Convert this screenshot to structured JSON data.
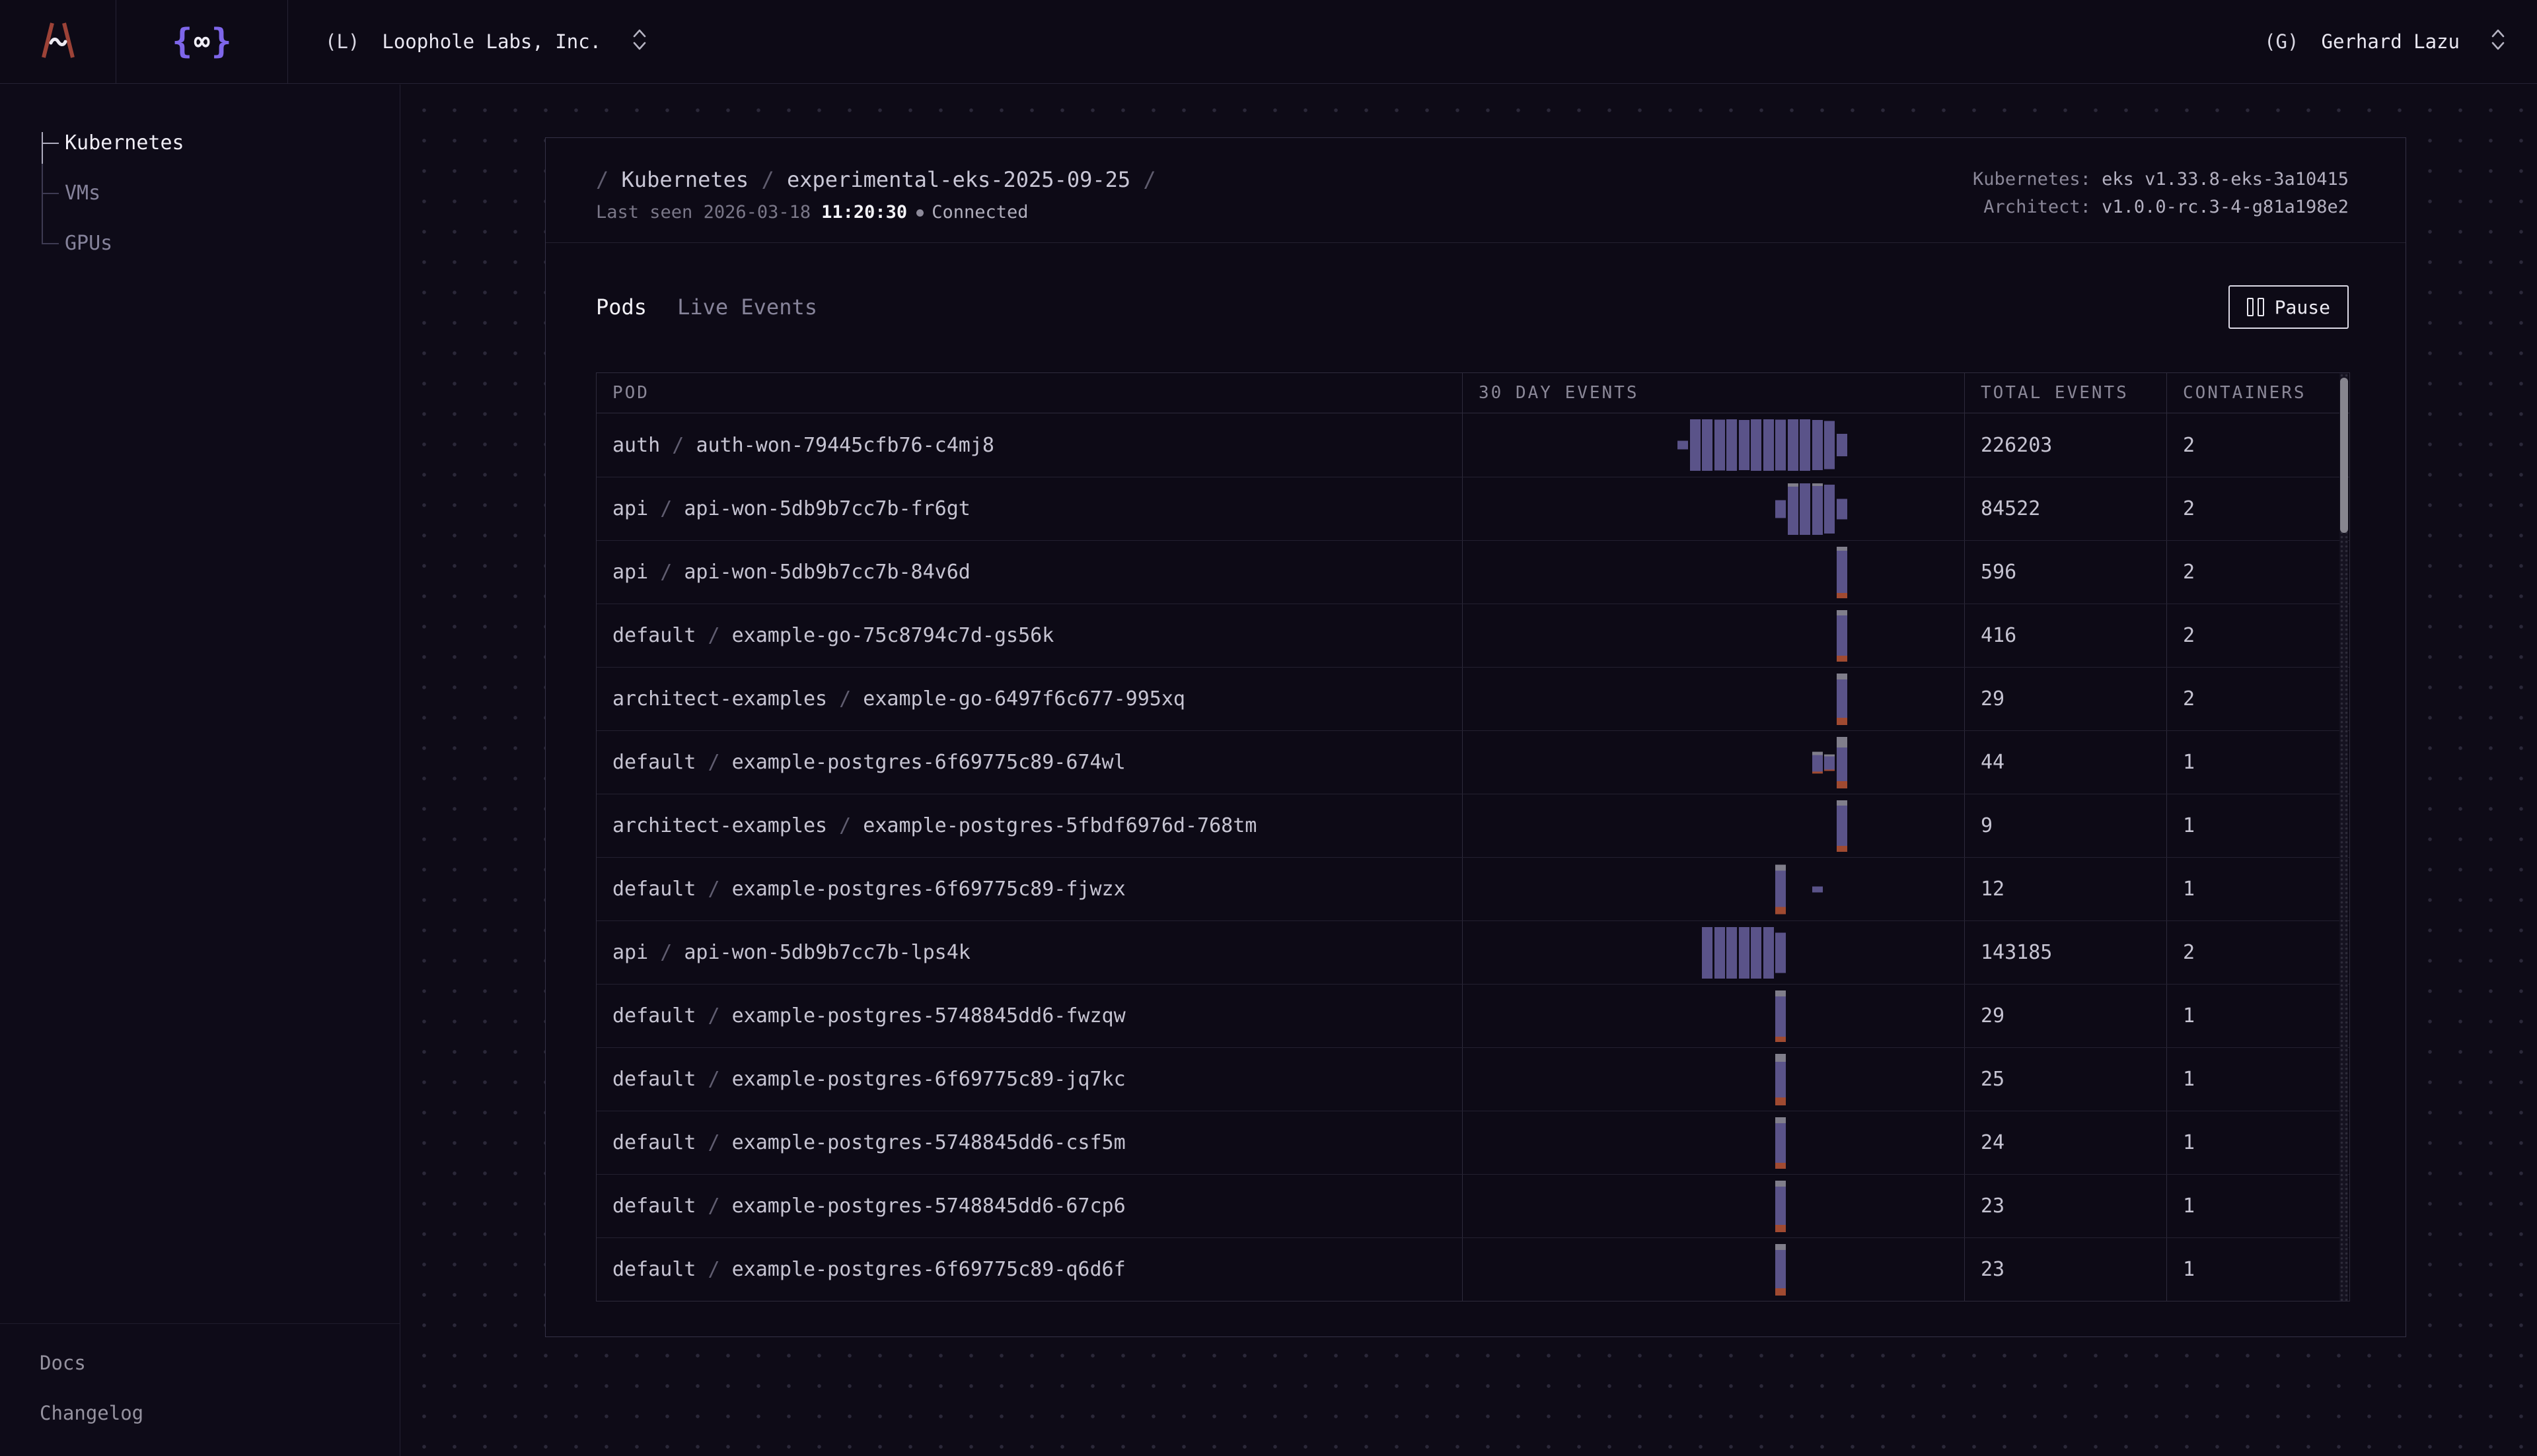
{
  "topbar": {
    "logo2": {
      "left": "{",
      "infinity": "∞",
      "right": "}"
    },
    "org": {
      "avatar": "(L)",
      "name": "Loophole Labs, Inc."
    },
    "user": {
      "avatar": "(G)",
      "name": "Gerhard Lazu"
    }
  },
  "sidebar": {
    "items": [
      {
        "label": "Kubernetes",
        "active": true
      },
      {
        "label": "VMs",
        "active": false
      },
      {
        "label": "GPUs",
        "active": false
      }
    ],
    "footer": [
      {
        "label": "Docs"
      },
      {
        "label": "Changelog"
      }
    ]
  },
  "card": {
    "breadcrumb": {
      "parts": [
        "Kubernetes",
        "experimental-eks-2025-09-25"
      ]
    },
    "status": {
      "last_seen_label": "Last seen",
      "date": "2026-03-18",
      "time": "11:20:30",
      "connection": "Connected"
    },
    "meta": {
      "k8s_label": "Kubernetes:",
      "k8s_value": "eks v1.33.8-eks-3a10415",
      "architect_label": "Architect:",
      "architect_value": "v1.0.0-rc.3-4-g81a198e2"
    },
    "tabs": [
      {
        "label": "Pods",
        "active": true
      },
      {
        "label": "Live Events",
        "active": false
      }
    ],
    "pause_label": "Pause"
  },
  "table": {
    "columns": [
      "POD",
      "30 DAY EVENTS",
      "TOTAL EVENTS",
      "CONTAINERS"
    ],
    "spark_slots": 30,
    "rows": [
      {
        "namespace": "auth",
        "pod": "auth-won-79445cfb76-c4mj8",
        "total": "226203",
        "containers": "2",
        "bars": [
          [
            16,
            0.17,
            0,
            0
          ],
          [
            17,
            1,
            0,
            0
          ],
          [
            18,
            1,
            0,
            0
          ],
          [
            19,
            0.99,
            0,
            0
          ],
          [
            20,
            1,
            0,
            0
          ],
          [
            21,
            0.98,
            0,
            0
          ],
          [
            22,
            1,
            0,
            0
          ],
          [
            23,
            1,
            0,
            0
          ],
          [
            24,
            0.99,
            0,
            0
          ],
          [
            25,
            1,
            0,
            0
          ],
          [
            26,
            1,
            0,
            0
          ],
          [
            27,
            0.98,
            0,
            0
          ],
          [
            28,
            0.93,
            0,
            0
          ],
          [
            29,
            0.43,
            0,
            0
          ]
        ]
      },
      {
        "namespace": "api",
        "pod": "api-won-5db9b7cc7b-fr6gt",
        "total": "84522",
        "containers": "2",
        "bars": [
          [
            24,
            0.34,
            0,
            0
          ],
          [
            25,
            1,
            0.06,
            0
          ],
          [
            26,
            1,
            0,
            0
          ],
          [
            27,
            1,
            0.05,
            0
          ],
          [
            28,
            0.95,
            0,
            0
          ],
          [
            29,
            0.4,
            0,
            0
          ]
        ]
      },
      {
        "namespace": "api",
        "pod": "api-won-5db9b7cc7b-84v6d",
        "total": "596",
        "containers": "2",
        "bars": [
          [
            29,
            1,
            0.08,
            0.1
          ]
        ]
      },
      {
        "namespace": "default",
        "pod": "example-go-75c8794c7d-gs56k",
        "total": "416",
        "containers": "2",
        "bars": [
          [
            29,
            1,
            0.1,
            0.12
          ]
        ]
      },
      {
        "namespace": "architect-examples",
        "pod": "example-go-6497f6c677-995xq",
        "total": "29",
        "containers": "2",
        "bars": [
          [
            29,
            1,
            0.12,
            0.14
          ]
        ]
      },
      {
        "namespace": "default",
        "pod": "example-postgres-6f69775c89-674wl",
        "total": "44",
        "containers": "1",
        "bars": [
          [
            27,
            0.42,
            0.15,
            0.1
          ],
          [
            28,
            0.32,
            0.12,
            0.08
          ],
          [
            29,
            1,
            0.2,
            0.14
          ]
        ]
      },
      {
        "namespace": "architect-examples",
        "pod": "example-postgres-5fbdf6976d-768tm",
        "total": "9",
        "containers": "1",
        "bars": [
          [
            29,
            1,
            0.1,
            0.12
          ]
        ]
      },
      {
        "namespace": "default",
        "pod": "example-postgres-6f69775c89-fjwzx",
        "total": "12",
        "containers": "1",
        "bars": [
          [
            24,
            0.96,
            0.12,
            0.14
          ],
          [
            27,
            0.12,
            0,
            0
          ]
        ]
      },
      {
        "namespace": "api",
        "pod": "api-won-5db9b7cc7b-lps4k",
        "total": "143185",
        "containers": "2",
        "bars": [
          [
            18,
            1,
            0,
            0
          ],
          [
            19,
            1,
            0,
            0
          ],
          [
            20,
            1,
            0,
            0
          ],
          [
            21,
            1,
            0,
            0
          ],
          [
            22,
            1,
            0,
            0
          ],
          [
            23,
            1,
            0,
            0
          ],
          [
            24,
            0.78,
            0,
            0
          ]
        ]
      },
      {
        "namespace": "default",
        "pod": "example-postgres-5748845dd6-fwzqw",
        "total": "29",
        "containers": "1",
        "bars": [
          [
            24,
            1,
            0.12,
            0.1
          ]
        ]
      },
      {
        "namespace": "default",
        "pod": "example-postgres-6f69775c89-jq7kc",
        "total": "25",
        "containers": "1",
        "bars": [
          [
            24,
            1,
            0.15,
            0.16
          ]
        ]
      },
      {
        "namespace": "default",
        "pod": "example-postgres-5748845dd6-csf5m",
        "total": "24",
        "containers": "1",
        "bars": [
          [
            24,
            1,
            0.12,
            0.12
          ]
        ]
      },
      {
        "namespace": "default",
        "pod": "example-postgres-5748845dd6-67cp6",
        "total": "23",
        "containers": "1",
        "bars": [
          [
            24,
            1,
            0.12,
            0.14
          ]
        ]
      },
      {
        "namespace": "default",
        "pod": "example-postgres-6f69775c89-q6d6f",
        "total": "23",
        "containers": "1",
        "bars": [
          [
            24,
            1,
            0.12,
            0.14
          ]
        ]
      }
    ]
  },
  "colors": {
    "bar_purple": "#5a5389",
    "bar_cap_gray": "#807e8b",
    "bar_error_red": "#a04a31",
    "brand_red": "#9c4237",
    "brand_violet": "#7e66ea",
    "accent_text": "#f2f1f6"
  }
}
